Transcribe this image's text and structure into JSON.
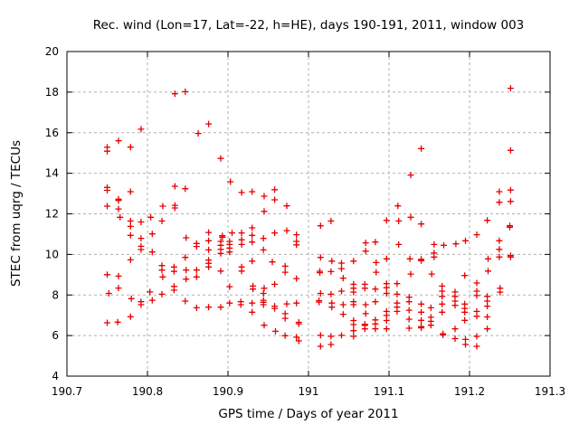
{
  "chart_data": {
    "type": "scatter",
    "title": "Rec. wind (Lon=17, Lat=-22, h=HE), days 190-191, 2011, window 003",
    "xlabel": "GPS time / Days of year 2011",
    "ylabel": "STEC from uqrg / TECUs",
    "xlim": [
      190.7,
      191.3
    ],
    "ylim": [
      4,
      20
    ],
    "x_ticks": [
      190.7,
      190.8,
      190.9,
      191,
      191.1,
      191.2,
      191.3
    ],
    "x_tick_labels": [
      "190.7",
      "190.8",
      "190.9",
      "191",
      "191.1",
      "191.2",
      "191.3"
    ],
    "y_ticks": [
      4,
      6,
      8,
      10,
      12,
      14,
      16,
      18,
      20
    ],
    "y_tick_labels": [
      "4",
      "6",
      "8",
      "10",
      "12",
      "14",
      "16",
      "18",
      "20"
    ],
    "grid": true,
    "legend": "none",
    "marker": "plus",
    "marker_color": "#e60000",
    "points": [
      [
        190.75,
        15.28
      ],
      [
        190.75,
        15.09
      ],
      [
        190.764,
        15.6
      ],
      [
        190.779,
        15.29
      ],
      [
        190.792,
        16.17
      ],
      [
        190.75,
        13.3
      ],
      [
        190.75,
        13.16
      ],
      [
        190.779,
        13.09
      ],
      [
        190.764,
        12.72
      ],
      [
        190.764,
        12.66
      ],
      [
        190.75,
        12.38
      ],
      [
        190.764,
        12.24
      ],
      [
        190.766,
        11.83
      ],
      [
        190.779,
        11.65
      ],
      [
        190.779,
        11.38
      ],
      [
        190.792,
        11.6
      ],
      [
        190.779,
        10.94
      ],
      [
        190.792,
        10.79
      ],
      [
        190.792,
        10.4
      ],
      [
        190.792,
        10.24
      ],
      [
        190.779,
        9.73
      ],
      [
        190.75,
        9.0
      ],
      [
        190.764,
        8.93
      ],
      [
        190.764,
        8.34
      ],
      [
        190.752,
        8.08
      ],
      [
        190.78,
        7.82
      ],
      [
        190.792,
        7.67
      ],
      [
        190.792,
        7.52
      ],
      [
        190.779,
        6.93
      ],
      [
        190.75,
        6.63
      ],
      [
        190.763,
        6.66
      ],
      [
        190.834,
        17.92
      ],
      [
        190.847,
        18.02
      ],
      [
        190.876,
        16.43
      ],
      [
        190.863,
        15.96
      ],
      [
        190.891,
        14.73
      ],
      [
        190.834,
        13.36
      ],
      [
        190.847,
        13.24
      ],
      [
        190.819,
        12.38
      ],
      [
        190.834,
        12.42
      ],
      [
        190.834,
        12.29
      ],
      [
        190.804,
        11.83
      ],
      [
        190.818,
        11.65
      ],
      [
        190.806,
        11.01
      ],
      [
        190.848,
        10.82
      ],
      [
        190.861,
        10.54
      ],
      [
        190.861,
        10.39
      ],
      [
        190.876,
        11.08
      ],
      [
        190.876,
        10.67
      ],
      [
        190.876,
        10.22
      ],
      [
        190.893,
        10.92
      ],
      [
        190.893,
        10.85
      ],
      [
        190.891,
        10.64
      ],
      [
        190.891,
        10.45
      ],
      [
        190.891,
        10.25
      ],
      [
        190.891,
        10.05
      ],
      [
        190.806,
        10.12
      ],
      [
        190.847,
        9.85
      ],
      [
        190.818,
        9.45
      ],
      [
        190.818,
        9.23
      ],
      [
        190.833,
        9.38
      ],
      [
        190.833,
        9.16
      ],
      [
        190.848,
        9.23
      ],
      [
        190.861,
        9.23
      ],
      [
        190.861,
        8.89
      ],
      [
        190.876,
        9.72
      ],
      [
        190.876,
        9.56
      ],
      [
        190.876,
        9.38
      ],
      [
        190.891,
        9.18
      ],
      [
        190.819,
        8.89
      ],
      [
        190.848,
        8.78
      ],
      [
        190.833,
        8.42
      ],
      [
        190.833,
        8.24
      ],
      [
        190.803,
        8.15
      ],
      [
        190.818,
        8.04
      ],
      [
        190.806,
        7.74
      ],
      [
        190.847,
        7.7
      ],
      [
        190.861,
        7.37
      ],
      [
        190.876,
        7.4
      ],
      [
        190.891,
        7.4
      ],
      [
        190.903,
        13.58
      ],
      [
        190.917,
        13.05
      ],
      [
        190.93,
        13.09
      ],
      [
        190.945,
        12.87
      ],
      [
        190.958,
        13.19
      ],
      [
        190.958,
        12.69
      ],
      [
        190.973,
        12.39
      ],
      [
        190.945,
        12.12
      ],
      [
        190.93,
        11.31
      ],
      [
        190.905,
        11.06
      ],
      [
        190.917,
        11.06
      ],
      [
        190.93,
        10.94
      ],
      [
        190.902,
        10.64
      ],
      [
        190.902,
        10.49
      ],
      [
        190.902,
        10.31
      ],
      [
        190.902,
        10.12
      ],
      [
        190.917,
        10.72
      ],
      [
        190.917,
        10.49
      ],
      [
        190.93,
        10.61
      ],
      [
        190.944,
        10.79
      ],
      [
        190.944,
        10.22
      ],
      [
        190.958,
        11.06
      ],
      [
        190.973,
        11.17
      ],
      [
        190.985,
        10.97
      ],
      [
        190.985,
        10.64
      ],
      [
        190.985,
        10.47
      ],
      [
        190.93,
        9.67
      ],
      [
        190.917,
        9.38
      ],
      [
        190.917,
        9.18
      ],
      [
        190.955,
        9.63
      ],
      [
        190.971,
        9.42
      ],
      [
        190.971,
        9.12
      ],
      [
        190.985,
        8.81
      ],
      [
        190.902,
        8.41
      ],
      [
        190.931,
        8.44
      ],
      [
        190.931,
        8.29
      ],
      [
        190.945,
        8.33
      ],
      [
        190.944,
        8.08
      ],
      [
        190.944,
        7.74
      ],
      [
        190.944,
        7.64
      ],
      [
        190.944,
        7.52
      ],
      [
        190.958,
        8.53
      ],
      [
        190.902,
        7.6
      ],
      [
        190.916,
        7.67
      ],
      [
        190.916,
        7.52
      ],
      [
        190.93,
        7.6
      ],
      [
        190.958,
        7.45
      ],
      [
        190.958,
        7.34
      ],
      [
        190.973,
        7.56
      ],
      [
        190.985,
        7.6
      ],
      [
        190.93,
        7.15
      ],
      [
        190.971,
        7.08
      ],
      [
        190.971,
        6.85
      ],
      [
        190.988,
        6.65
      ],
      [
        190.988,
        6.58
      ],
      [
        190.945,
        6.51
      ],
      [
        190.959,
        6.21
      ],
      [
        190.971,
        5.99
      ],
      [
        190.985,
        5.92
      ],
      [
        190.988,
        5.74
      ],
      [
        191.015,
        11.41
      ],
      [
        191.028,
        11.65
      ],
      [
        191.097,
        11.68
      ],
      [
        191.071,
        10.57
      ],
      [
        191.071,
        10.16
      ],
      [
        191.083,
        10.61
      ],
      [
        191.015,
        9.85
      ],
      [
        191.029,
        9.67
      ],
      [
        191.041,
        9.57
      ],
      [
        191.041,
        9.3
      ],
      [
        191.056,
        9.67
      ],
      [
        191.097,
        9.78
      ],
      [
        191.084,
        9.6
      ],
      [
        191.084,
        9.12
      ],
      [
        191.014,
        9.17
      ],
      [
        191.014,
        9.1
      ],
      [
        191.028,
        9.15
      ],
      [
        191.043,
        8.83
      ],
      [
        191.056,
        8.53
      ],
      [
        191.056,
        8.33
      ],
      [
        191.056,
        8.14
      ],
      [
        191.07,
        8.53
      ],
      [
        191.07,
        8.33
      ],
      [
        191.083,
        8.29
      ],
      [
        191.041,
        8.19
      ],
      [
        191.015,
        8.08
      ],
      [
        191.028,
        8.04
      ],
      [
        191.097,
        8.56
      ],
      [
        191.097,
        8.36
      ],
      [
        191.097,
        8.08
      ],
      [
        191.013,
        7.72
      ],
      [
        191.013,
        7.65
      ],
      [
        191.029,
        7.6
      ],
      [
        191.029,
        7.4
      ],
      [
        191.043,
        7.52
      ],
      [
        191.056,
        7.67
      ],
      [
        191.056,
        7.52
      ],
      [
        191.071,
        7.52
      ],
      [
        191.071,
        7.08
      ],
      [
        191.083,
        7.67
      ],
      [
        191.097,
        7.19
      ],
      [
        191.097,
        6.99
      ],
      [
        191.043,
        7.05
      ],
      [
        191.056,
        6.74
      ],
      [
        191.056,
        6.54
      ],
      [
        191.056,
        6.24
      ],
      [
        191.07,
        6.56
      ],
      [
        191.07,
        6.5
      ],
      [
        191.07,
        6.33
      ],
      [
        191.083,
        6.77
      ],
      [
        191.083,
        6.57
      ],
      [
        191.083,
        6.33
      ],
      [
        191.097,
        6.74
      ],
      [
        191.097,
        6.33
      ],
      [
        191.015,
        6.01
      ],
      [
        191.015,
        5.47
      ],
      [
        191.028,
        5.96
      ],
      [
        191.028,
        5.56
      ],
      [
        191.041,
        6.01
      ],
      [
        191.056,
        5.96
      ],
      [
        191.14,
        15.22
      ],
      [
        191.127,
        13.91
      ],
      [
        191.111,
        12.39
      ],
      [
        191.112,
        11.65
      ],
      [
        191.127,
        11.83
      ],
      [
        191.14,
        11.5
      ],
      [
        191.112,
        10.49
      ],
      [
        191.156,
        10.49
      ],
      [
        191.156,
        10.07
      ],
      [
        191.168,
        10.45
      ],
      [
        191.183,
        10.52
      ],
      [
        191.195,
        10.67
      ],
      [
        191.126,
        9.78
      ],
      [
        191.14,
        9.76
      ],
      [
        191.14,
        9.69
      ],
      [
        191.156,
        9.87
      ],
      [
        191.127,
        9.03
      ],
      [
        191.153,
        9.03
      ],
      [
        191.194,
        8.96
      ],
      [
        191.11,
        8.56
      ],
      [
        191.11,
        8.04
      ],
      [
        191.11,
        7.6
      ],
      [
        191.11,
        7.4
      ],
      [
        191.11,
        7.19
      ],
      [
        191.125,
        7.89
      ],
      [
        191.125,
        7.67
      ],
      [
        191.125,
        7.25
      ],
      [
        191.125,
        6.81
      ],
      [
        191.125,
        6.36
      ],
      [
        191.14,
        7.55
      ],
      [
        191.14,
        7.15
      ],
      [
        191.14,
        6.75
      ],
      [
        191.14,
        6.44
      ],
      [
        191.14,
        6.38
      ],
      [
        191.152,
        7.37
      ],
      [
        191.152,
        6.9
      ],
      [
        191.152,
        6.7
      ],
      [
        191.152,
        6.51
      ],
      [
        191.166,
        8.44
      ],
      [
        191.166,
        8.19
      ],
      [
        191.166,
        7.93
      ],
      [
        191.166,
        7.55
      ],
      [
        191.166,
        7.15
      ],
      [
        191.167,
        6.09
      ],
      [
        191.167,
        6.03
      ],
      [
        191.182,
        8.15
      ],
      [
        191.182,
        7.93
      ],
      [
        191.182,
        7.7
      ],
      [
        191.182,
        7.49
      ],
      [
        191.182,
        6.33
      ],
      [
        191.182,
        5.85
      ],
      [
        191.194,
        7.55
      ],
      [
        191.194,
        7.34
      ],
      [
        191.194,
        7.15
      ],
      [
        191.194,
        6.75
      ],
      [
        191.195,
        5.81
      ],
      [
        191.195,
        5.56
      ],
      [
        191.251,
        18.19
      ],
      [
        191.251,
        15.13
      ],
      [
        191.237,
        13.09
      ],
      [
        191.251,
        13.17
      ],
      [
        191.237,
        12.57
      ],
      [
        191.251,
        12.61
      ],
      [
        191.222,
        11.68
      ],
      [
        191.25,
        11.41
      ],
      [
        191.25,
        11.34
      ],
      [
        191.209,
        10.97
      ],
      [
        191.237,
        10.67
      ],
      [
        191.237,
        10.25
      ],
      [
        191.237,
        9.87
      ],
      [
        191.223,
        9.78
      ],
      [
        191.251,
        9.94
      ],
      [
        191.251,
        9.87
      ],
      [
        191.223,
        9.18
      ],
      [
        191.209,
        8.59
      ],
      [
        191.209,
        8.19
      ],
      [
        191.209,
        7.97
      ],
      [
        191.238,
        8.33
      ],
      [
        191.238,
        8.14
      ],
      [
        191.222,
        7.93
      ],
      [
        191.222,
        7.7
      ],
      [
        191.222,
        7.45
      ],
      [
        191.209,
        7.19
      ],
      [
        191.209,
        6.95
      ],
      [
        191.222,
        6.92
      ],
      [
        191.222,
        6.33
      ],
      [
        191.209,
        5.96
      ],
      [
        191.209,
        5.47
      ]
    ]
  }
}
